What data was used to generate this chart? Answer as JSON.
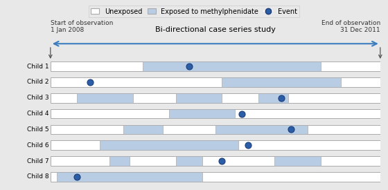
{
  "title": "Bi-directional case series study",
  "start_label": "Start of observation\n1 Jan 2008",
  "end_label": "End of observation\n31 Dec 2011",
  "x_min": 0.0,
  "x_max": 1.0,
  "children": [
    "Child 1",
    "Child 2",
    "Child 3",
    "Child 4",
    "Child 5",
    "Child 6",
    "Child 7",
    "Child 8"
  ],
  "exposed_bars": [
    [
      [
        0.28,
        0.82
      ]
    ],
    [
      [
        0.52,
        0.88
      ]
    ],
    [
      [
        0.08,
        0.25
      ],
      [
        0.38,
        0.52
      ],
      [
        0.63,
        0.72
      ]
    ],
    [
      [
        0.36,
        0.56
      ]
    ],
    [
      [
        0.22,
        0.34
      ],
      [
        0.5,
        0.78
      ]
    ],
    [
      [
        0.15,
        0.57
      ]
    ],
    [
      [
        0.18,
        0.24
      ],
      [
        0.38,
        0.46
      ],
      [
        0.68,
        0.82
      ]
    ],
    [
      [
        0.02,
        0.46
      ]
    ]
  ],
  "events": [
    0.42,
    0.12,
    0.7,
    0.58,
    0.73,
    0.6,
    0.52,
    0.08
  ],
  "bar_height": 0.6,
  "exposed_color": "#b8cce4",
  "unexposed_color": "#ffffff",
  "event_color": "#2b5ea7",
  "event_edge_color": "#1a3d7a",
  "background_color": "#e8e8e8",
  "legend_unexposed": "Unexposed",
  "legend_exposed": "Exposed to methylphenidate",
  "legend_event": "Event",
  "arrow_color": "#3b7dbf",
  "border_color": "#aaaaaa",
  "text_color": "#333333"
}
